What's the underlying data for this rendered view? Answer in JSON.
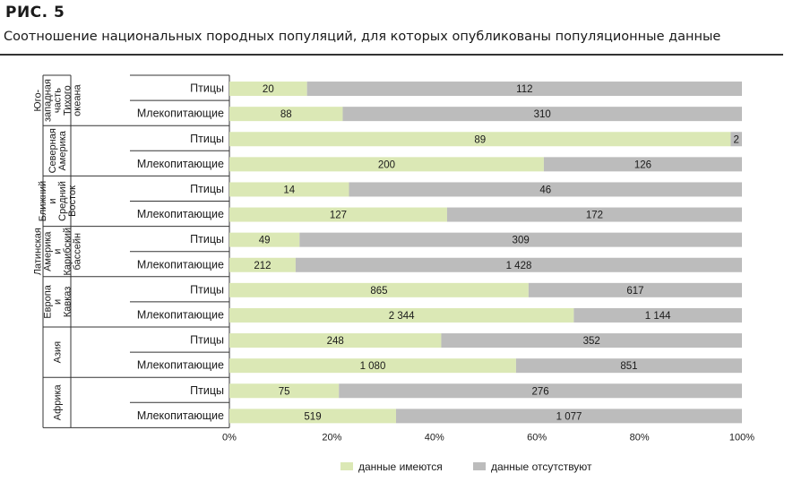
{
  "figure": {
    "label": "РИС.  5",
    "title": "Соотношение национальных породных популяций, для которых опубликованы популяционные данные"
  },
  "chart_data": {
    "type": "bar",
    "orientation": "horizontal",
    "stacked": "percent",
    "xlim": [
      0,
      100
    ],
    "x_ticks": [
      "0%",
      "20%",
      "40%",
      "60%",
      "80%",
      "100%"
    ],
    "groups": [
      {
        "region_lines": [
          "Юго-",
          "западная",
          "часть",
          "Тихого",
          "океана"
        ],
        "rows": [
          {
            "category": "Птицы",
            "available": 20,
            "missing": 112,
            "available_label": "20",
            "missing_label": "112"
          },
          {
            "category": "Млекопитающие",
            "available": 88,
            "missing": 310,
            "available_label": "88",
            "missing_label": "310"
          }
        ]
      },
      {
        "region_lines": [
          "Северная",
          "Америка"
        ],
        "rows": [
          {
            "category": "Птицы",
            "available": 89,
            "missing": 2,
            "available_label": "89",
            "missing_label": "2"
          },
          {
            "category": "Млекопитающие",
            "available": 200,
            "missing": 126,
            "available_label": "200",
            "missing_label": "126"
          }
        ]
      },
      {
        "region_lines": [
          "Ближний",
          "и",
          "Средний",
          "Восток"
        ],
        "rows": [
          {
            "category": "Птицы",
            "available": 14,
            "missing": 46,
            "available_label": "14",
            "missing_label": "46"
          },
          {
            "category": "Млекопитающие",
            "available": 127,
            "missing": 172,
            "available_label": "127",
            "missing_label": "172"
          }
        ]
      },
      {
        "region_lines": [
          "Латинская",
          "Америка",
          "и",
          "Карибский",
          "бассейн"
        ],
        "rows": [
          {
            "category": "Птицы",
            "available": 49,
            "missing": 309,
            "available_label": "49",
            "missing_label": "309"
          },
          {
            "category": "Млекопитающие",
            "available": 212,
            "missing": 1428,
            "available_label": "212",
            "missing_label": "1 428"
          }
        ]
      },
      {
        "region_lines": [
          "Европа",
          "и",
          "Кавказ"
        ],
        "rows": [
          {
            "category": "Птицы",
            "available": 865,
            "missing": 617,
            "available_label": "865",
            "missing_label": "617"
          },
          {
            "category": "Млекопитающие",
            "available": 2344,
            "missing": 1144,
            "available_label": "2 344",
            "missing_label": "1 144"
          }
        ]
      },
      {
        "region_lines": [
          "Азия"
        ],
        "rows": [
          {
            "category": "Птицы",
            "available": 248,
            "missing": 352,
            "available_label": "248",
            "missing_label": "352"
          },
          {
            "category": "Млекопитающие",
            "available": 1080,
            "missing": 851,
            "available_label": "1 080",
            "missing_label": "851"
          }
        ]
      },
      {
        "region_lines": [
          "Африка"
        ],
        "rows": [
          {
            "category": "Птицы",
            "available": 75,
            "missing": 276,
            "available_label": "75",
            "missing_label": "276"
          },
          {
            "category": "Млекопитающие",
            "available": 519,
            "missing": 1077,
            "available_label": "519",
            "missing_label": "1 077"
          }
        ]
      }
    ],
    "series": [
      {
        "key": "available",
        "name": "данные имеются",
        "color": "#dbe8b5"
      },
      {
        "key": "missing",
        "name": "данные отсутствуют",
        "color": "#bcbcbc"
      }
    ],
    "legend_position": "bottom-center",
    "grid": false
  }
}
